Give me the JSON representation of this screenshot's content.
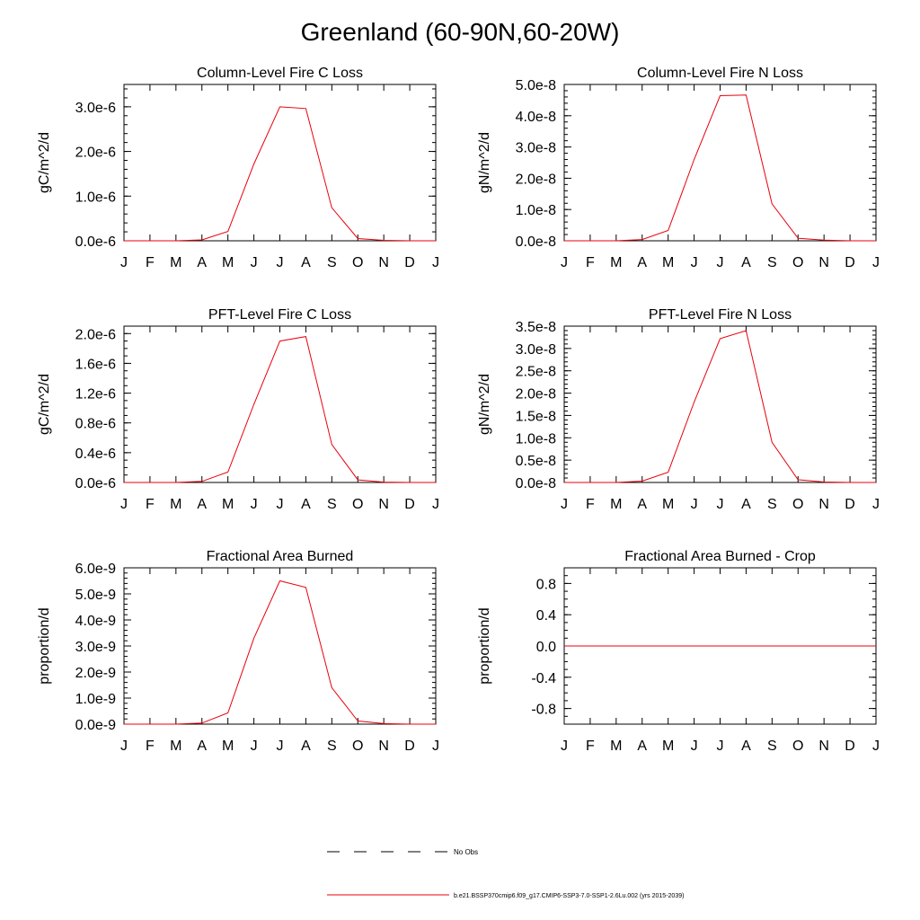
{
  "figure": {
    "title": "Greenland (60-90N,60-20W)"
  },
  "chart_data": [
    {
      "type": "line",
      "title": "Column-Level Fire C Loss",
      "ylabel": "gC/m^2/d",
      "categories": [
        "J",
        "F",
        "M",
        "A",
        "M",
        "J",
        "J",
        "A",
        "S",
        "O",
        "N",
        "D",
        "J"
      ],
      "ylim": [
        0,
        3.5e-06
      ],
      "yticks": [
        0,
        1e-06,
        2e-06,
        3e-06
      ],
      "ytick_labels": [
        "0.0e-6",
        "1.0e-6",
        "2.0e-6",
        "3.0e-6"
      ],
      "yminor": 2e-07,
      "series": [
        {
          "name": "b.e21.BSSP370cmip6.f09_g17.CMIP6-SSP3-7.0-SSP1-2.6Lu.002 (yrs 2015-2039)",
          "color": "#e8000b",
          "values": [
            0,
            0,
            0,
            2e-08,
            2.1e-07,
            1.72e-06,
            3e-06,
            2.96e-06,
            7.4e-07,
            5e-08,
            1e-08,
            0,
            0
          ]
        }
      ]
    },
    {
      "type": "line",
      "title": "Column-Level Fire N Loss",
      "ylabel": "gN/m^2/d",
      "categories": [
        "J",
        "F",
        "M",
        "A",
        "M",
        "J",
        "J",
        "A",
        "S",
        "O",
        "N",
        "D",
        "J"
      ],
      "ylim": [
        0,
        5e-08
      ],
      "yticks": [
        0,
        1e-08,
        2e-08,
        3e-08,
        4e-08,
        5e-08
      ],
      "ytick_labels": [
        "0.0e-8",
        "1.0e-8",
        "2.0e-8",
        "3.0e-8",
        "4.0e-8",
        "5.0e-8"
      ],
      "yminor": 2e-09,
      "series": [
        {
          "name": "b.e21.BSSP370cmip6.f09_g17.CMIP6-SSP3-7.0-SSP1-2.6Lu.002 (yrs 2015-2039)",
          "color": "#e8000b",
          "values": [
            0,
            0,
            0,
            4e-10,
            3.3e-09,
            2.6e-08,
            4.64e-08,
            4.66e-08,
            1.18e-08,
            8e-10,
            2e-10,
            0,
            0
          ]
        }
      ]
    },
    {
      "type": "line",
      "title": "PFT-Level Fire C Loss",
      "ylabel": "gC/m^2/d",
      "categories": [
        "J",
        "F",
        "M",
        "A",
        "M",
        "J",
        "J",
        "A",
        "S",
        "O",
        "N",
        "D",
        "J"
      ],
      "ylim": [
        0,
        2.1e-06
      ],
      "yticks": [
        0,
        4e-07,
        8e-07,
        1.2e-06,
        1.6e-06,
        2e-06
      ],
      "ytick_labels": [
        "0.0e-6",
        "0.4e-6",
        "0.8e-6",
        "1.2e-6",
        "1.6e-6",
        "2.0e-6"
      ],
      "yminor": 1e-07,
      "series": [
        {
          "name": "b.e21.BSSP370cmip6.f09_g17.CMIP6-SSP3-7.0-SSP1-2.6Lu.002 (yrs 2015-2039)",
          "color": "#e8000b",
          "values": [
            0,
            0,
            0,
            1.5e-08,
            1.4e-07,
            1.05e-06,
            1.9e-06,
            1.96e-06,
            5.1e-07,
            3.5e-08,
            5e-09,
            0,
            0
          ]
        }
      ]
    },
    {
      "type": "line",
      "title": "PFT-Level Fire N Loss",
      "ylabel": "gN/m^2/d",
      "categories": [
        "J",
        "F",
        "M",
        "A",
        "M",
        "J",
        "J",
        "A",
        "S",
        "O",
        "N",
        "D",
        "J"
      ],
      "ylim": [
        0,
        3.5e-08
      ],
      "yticks": [
        0,
        5e-09,
        1e-08,
        1.5e-08,
        2e-08,
        2.5e-08,
        3e-08,
        3.5e-08
      ],
      "ytick_labels": [
        "0.0e-8",
        "0.5e-8",
        "1.0e-8",
        "1.5e-8",
        "2.0e-8",
        "2.5e-8",
        "3.0e-8",
        "3.5e-8"
      ],
      "yminor": 1e-09,
      "series": [
        {
          "name": "b.e21.BSSP370cmip6.f09_g17.CMIP6-SSP3-7.0-SSP1-2.6Lu.002 (yrs 2015-2039)",
          "color": "#e8000b",
          "values": [
            0,
            0,
            0,
            3e-10,
            2.3e-09,
            1.8e-08,
            3.22e-08,
            3.4e-08,
            9e-09,
            6e-10,
            1e-10,
            0,
            0
          ]
        }
      ]
    },
    {
      "type": "line",
      "title": "Fractional Area Burned",
      "ylabel": "proportion/d",
      "categories": [
        "J",
        "F",
        "M",
        "A",
        "M",
        "J",
        "J",
        "A",
        "S",
        "O",
        "N",
        "D",
        "J"
      ],
      "ylim": [
        0,
        6e-09
      ],
      "yticks": [
        0,
        1e-09,
        2e-09,
        3e-09,
        4e-09,
        5e-09,
        6e-09
      ],
      "ytick_labels": [
        "0.0e-9",
        "1.0e-9",
        "2.0e-9",
        "3.0e-9",
        "4.0e-9",
        "5.0e-9",
        "6.0e-9"
      ],
      "yminor": 2e-10,
      "series": [
        {
          "name": "b.e21.BSSP370cmip6.f09_g17.CMIP6-SSP3-7.0-SSP1-2.6Lu.002 (yrs 2015-2039)",
          "color": "#e8000b",
          "values": [
            0,
            0,
            0,
            4e-11,
            4.3e-10,
            3.3e-09,
            5.5e-09,
            5.25e-09,
            1.4e-09,
            1.2e-10,
            2e-11,
            0,
            0
          ]
        }
      ]
    },
    {
      "type": "line",
      "title": "Fractional Area Burned - Crop",
      "ylabel": "proportion/d",
      "categories": [
        "J",
        "F",
        "M",
        "A",
        "M",
        "J",
        "J",
        "A",
        "S",
        "O",
        "N",
        "D",
        "J"
      ],
      "ylim": [
        -1.0,
        1.0
      ],
      "yticks": [
        -0.8,
        -0.4,
        0,
        0.4,
        0.8
      ],
      "ytick_labels": [
        "-0.8",
        "-0.4",
        "0.0",
        "0.4",
        "0.8"
      ],
      "yminor": 0.1,
      "series": [
        {
          "name": "b.e21.BSSP370cmip6.f09_g17.CMIP6-SSP3-7.0-SSP1-2.6Lu.002 (yrs 2015-2039)",
          "color": "#e8000b",
          "values": [
            0,
            0,
            0,
            0,
            0,
            0,
            0,
            0,
            0,
            0,
            0,
            0,
            0
          ]
        }
      ]
    }
  ],
  "legend": {
    "entries": [
      {
        "label": "No Obs",
        "style": "dashed",
        "color": "#000000"
      },
      {
        "label": "b.e21.BSSP370cmip6.f09_g17.CMIP6-SSP3-7.0-SSP1-2.6Lu.002 (yrs 2015-2039)",
        "style": "solid",
        "color": "#e8000b"
      }
    ]
  }
}
